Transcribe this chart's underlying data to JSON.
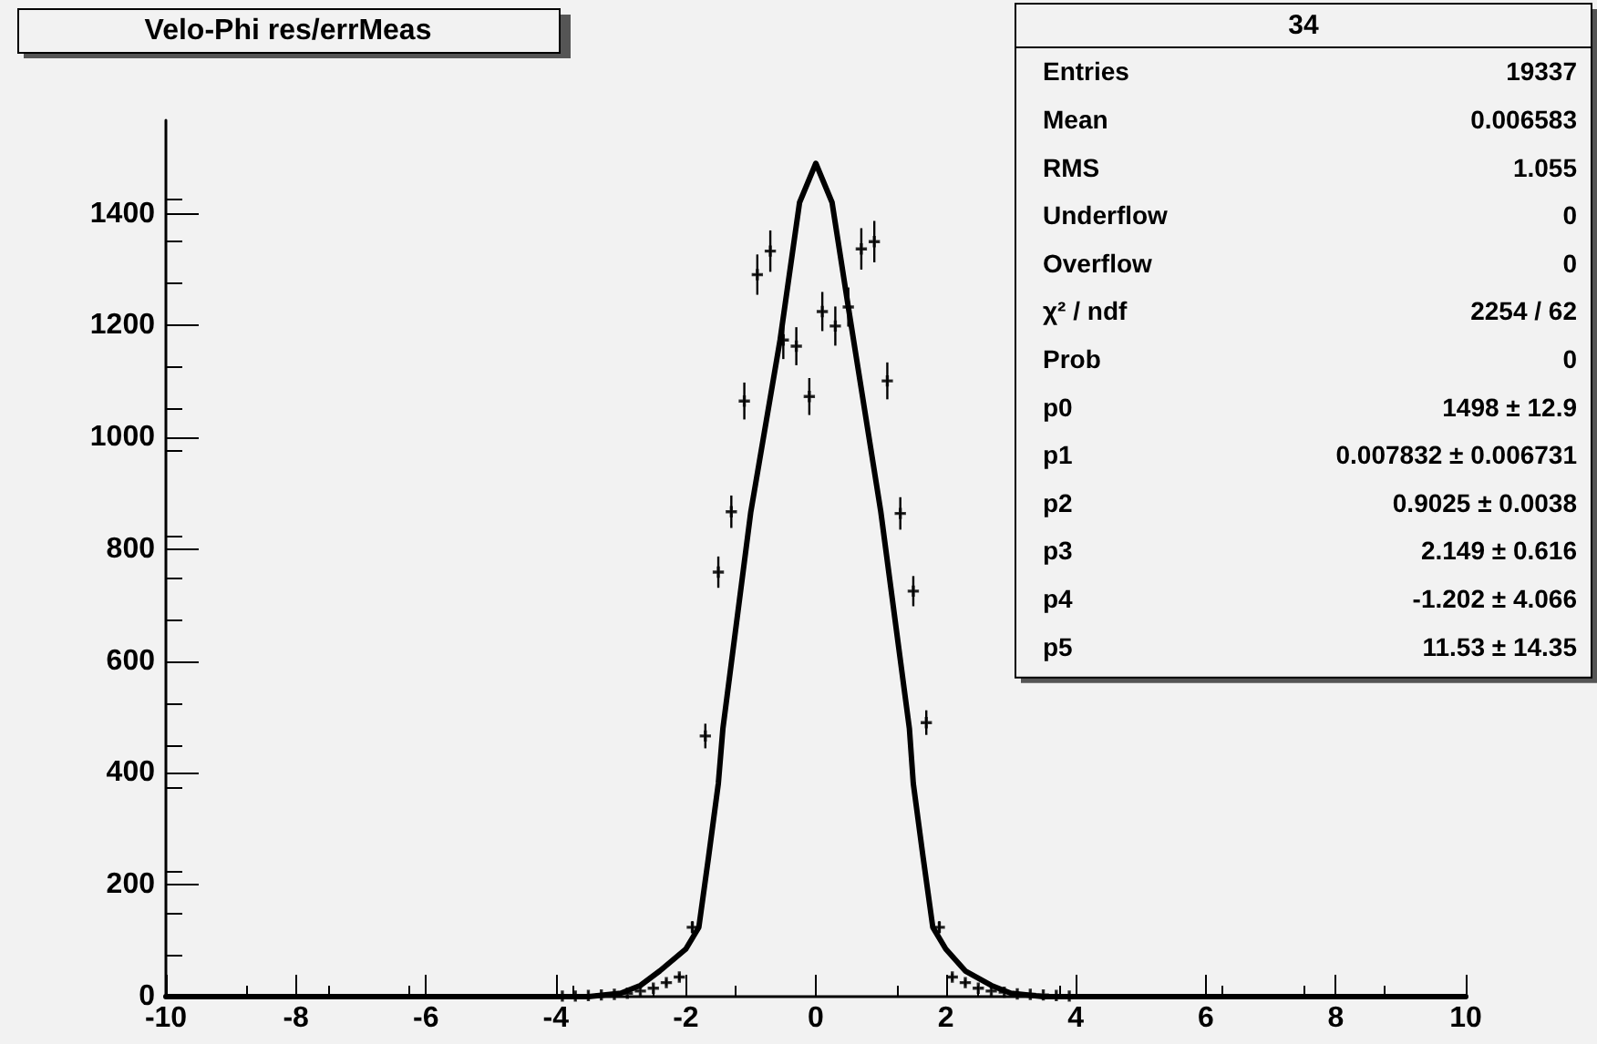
{
  "chart_data": {
    "type": "scatter",
    "title": "Velo-Phi res/errMeas",
    "annotations": [
      "34",
      "Entries\t19337",
      "Mean\t0.006583",
      "RMS\t1.055",
      "Underflow\t0",
      "Overflow\t0",
      "χ² / ndf\t2254 / 62",
      "Prob\t0",
      "p0\t1498 ± 12.9",
      "p1\t0.007832 ± 0.006731",
      "p2\t0.9025 ± 0.0038",
      "p3\t2.149 ± 0.616",
      "p4\t-1.202 ± 4.066",
      "p5\t11.53 ± 14.35"
    ],
    "series": [
      {
        "color": "#000000",
        "marker": "cross",
        "x": [
          -3.9,
          -3.7,
          -3.5,
          -3.3,
          -3.1,
          -2.9,
          -2.7,
          -2.5,
          -2.3,
          -2.1,
          -1.9,
          -1.7,
          -1.5,
          -1.3,
          -1.1,
          -0.9,
          -0.7,
          -0.5,
          -0.3,
          -0.1,
          0.1,
          0.3,
          0.5,
          0.7,
          0.9,
          1.1,
          1.3,
          1.5,
          1.7,
          1.9,
          2.1,
          2.3,
          2.5,
          2.7,
          2.9,
          3.1,
          3.3,
          3.5,
          3.7,
          3.9
        ],
        "values": [
          1,
          1,
          2,
          3,
          4,
          6,
          10,
          15,
          25,
          35,
          124,
          466,
          759,
          867,
          1065,
          1291,
          1333,
          1174,
          1163,
          1073,
          1225,
          1199,
          1233,
          1337,
          1350,
          1101,
          864,
          725,
          490,
          124,
          35,
          25,
          15,
          10,
          8,
          5,
          4,
          3,
          2,
          1
        ],
        "errors": [
          null,
          null,
          null,
          null,
          null,
          null,
          null,
          null,
          5,
          6,
          11,
          22,
          28,
          29,
          33,
          36,
          37,
          34,
          34,
          33,
          35,
          35,
          35,
          37,
          37,
          33,
          29,
          27,
          22,
          11,
          6,
          5,
          null,
          null,
          null,
          null,
          null,
          null,
          null,
          null
        ]
      },
      {
        "type": "line",
        "color": "#000000",
        "marker": "none",
        "line_style": "solid",
        "x": [
          -10,
          -3.5,
          -3,
          -2.7,
          -2.4,
          -2,
          -1.8,
          -1.65,
          -1.5,
          -1.43,
          -1,
          -0.55,
          -0.25,
          0,
          0.25,
          0.5,
          1,
          1.44,
          1.5,
          1.65,
          1.8,
          2,
          2.3,
          2.7,
          3,
          3.5,
          10
        ],
        "values": [
          0,
          0,
          6,
          20,
          46,
          85,
          124,
          250,
          381,
          479,
          867,
          1174,
          1420,
          1490,
          1420,
          1233,
          867,
          479,
          381,
          250,
          124,
          85,
          46,
          20,
          6,
          0,
          0
        ]
      }
    ],
    "xlim": [
      -10,
      10
    ],
    "xticks": [
      -10,
      -8,
      -6,
      -4,
      -2,
      0,
      2,
      4,
      6,
      8,
      10
    ],
    "ylim": [
      0,
      1567
    ],
    "yticks": [
      0,
      200,
      400,
      600,
      800,
      1000,
      1200,
      1400
    ],
    "grid": false
  }
}
